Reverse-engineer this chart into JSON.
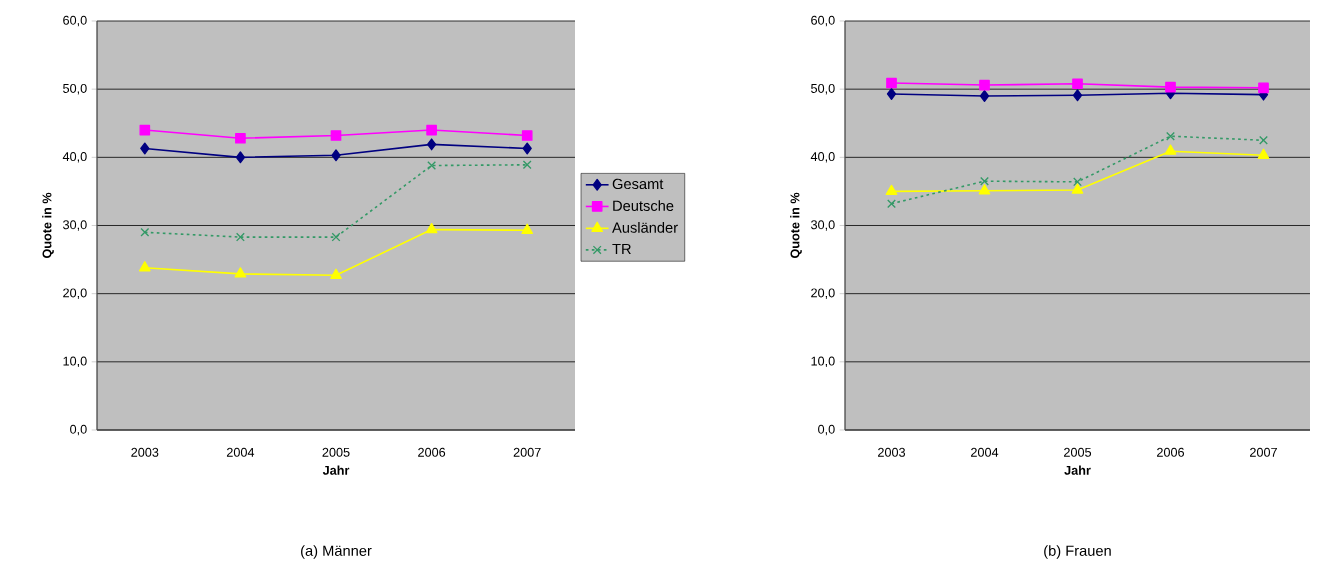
{
  "chart_data": [
    {
      "type": "line",
      "categories": [
        "2003",
        "2004",
        "2005",
        "2006",
        "2007"
      ],
      "xlabel": "Jahr",
      "ylabel": "Quote in %",
      "ylim": [
        0,
        60
      ],
      "yticks": [
        {
          "value": 0,
          "label": "0,0"
        },
        {
          "value": 10,
          "label": "10,0"
        },
        {
          "value": 20,
          "label": "20,0"
        },
        {
          "value": 30,
          "label": "30,0"
        },
        {
          "value": 40,
          "label": "40,0"
        },
        {
          "value": 50,
          "label": "50,0"
        },
        {
          "value": 60,
          "label": "60,0"
        }
      ],
      "grid": "y",
      "legend": "right",
      "annotations": [
        "(a) Männer"
      ],
      "series": [
        {
          "name": "Gesamt",
          "color": "#000080",
          "marker": "diamond",
          "line_style": "solid",
          "values": [
            41.3,
            40.0,
            40.3,
            41.9,
            41.3
          ]
        },
        {
          "name": "Deutsche",
          "color": "#ff00ff",
          "marker": "square",
          "line_style": "solid",
          "values": [
            44.0,
            42.8,
            43.2,
            44.0,
            43.2
          ]
        },
        {
          "name": "Ausländer",
          "color": "#ffff00",
          "marker": "triangle",
          "line_style": "solid",
          "values": [
            23.8,
            22.9,
            22.7,
            29.4,
            29.3
          ]
        },
        {
          "name": "TR",
          "color": "#339966",
          "marker": "cross",
          "line_style": "dotted",
          "values": [
            29.0,
            28.3,
            28.3,
            38.8,
            38.9
          ]
        }
      ]
    },
    {
      "type": "line",
      "categories": [
        "2003",
        "2004",
        "2005",
        "2006",
        "2007"
      ],
      "xlabel": "Jahr",
      "ylabel": "Quote in %",
      "ylim": [
        0,
        60
      ],
      "yticks": [
        {
          "value": 0,
          "label": "0,0"
        },
        {
          "value": 10,
          "label": "10,0"
        },
        {
          "value": 20,
          "label": "20,0"
        },
        {
          "value": 30,
          "label": "30,0"
        },
        {
          "value": 40,
          "label": "40,0"
        },
        {
          "value": 50,
          "label": "50,0"
        },
        {
          "value": 60,
          "label": "60,0"
        }
      ],
      "grid": "y",
      "annotations": [
        "(b) Frauen"
      ],
      "series": [
        {
          "color": "#000080",
          "marker": "diamond",
          "line_style": "solid",
          "values": [
            49.3,
            49.0,
            49.1,
            49.4,
            49.2
          ]
        },
        {
          "color": "#ff00ff",
          "marker": "square",
          "line_style": "solid",
          "values": [
            50.9,
            50.6,
            50.8,
            50.3,
            50.2
          ]
        },
        {
          "color": "#ffff00",
          "marker": "triangle",
          "line_style": "solid",
          "values": [
            35.0,
            35.1,
            35.2,
            40.9,
            40.3
          ]
        },
        {
          "color": "#339966",
          "marker": "cross",
          "line_style": "dotted",
          "values": [
            33.2,
            36.5,
            36.4,
            43.1,
            42.5
          ]
        }
      ]
    }
  ]
}
